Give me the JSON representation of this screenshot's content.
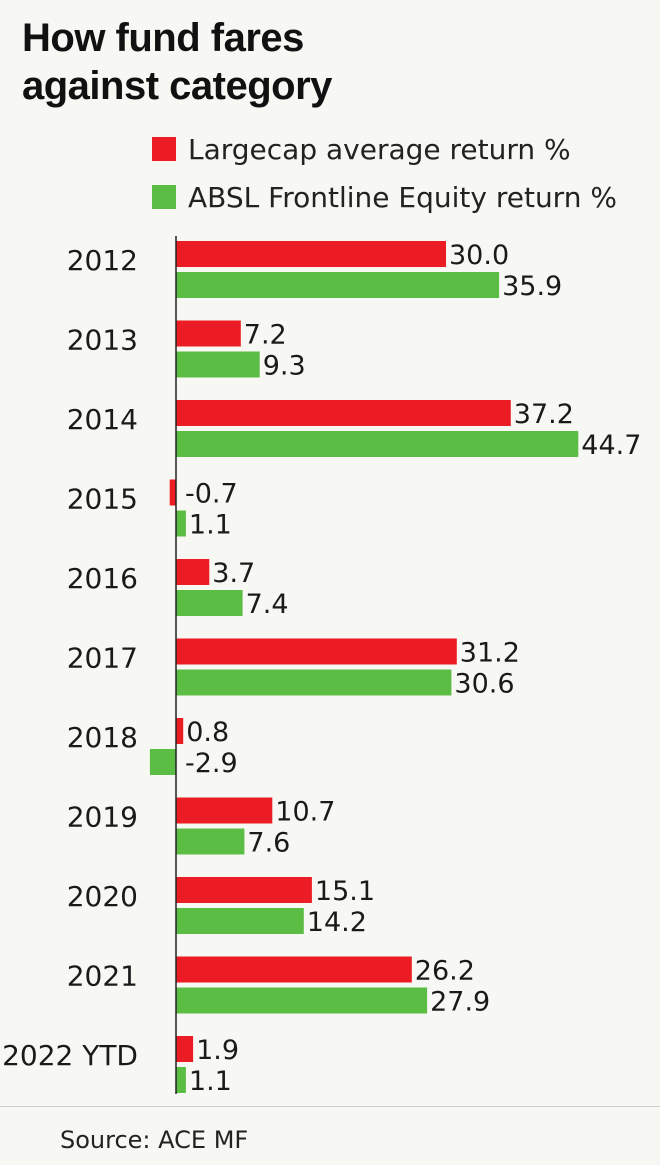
{
  "colors": {
    "largecap": "#ec1c24",
    "fund": "#5cbd44",
    "axis": "#222222"
  },
  "chart_data": {
    "type": "bar",
    "orientation": "horizontal",
    "title_lines": [
      "How fund fares",
      "against category"
    ],
    "categories": [
      "2012",
      "2013",
      "2014",
      "2015",
      "2016",
      "2017",
      "2018",
      "2019",
      "2020",
      "2021",
      "2022 YTD"
    ],
    "series": [
      {
        "name": "Largecap average return %",
        "values": [
          30.0,
          7.2,
          37.2,
          -0.7,
          3.7,
          31.2,
          0.8,
          10.7,
          15.1,
          26.2,
          1.9
        ],
        "labels": [
          "30.0",
          "7.2",
          "37.2",
          "-0.7",
          "3.7",
          "31.2",
          "0.8",
          "10.7",
          "15.1",
          "26.2",
          "1.9"
        ]
      },
      {
        "name": "ABSL Frontline Equity return %",
        "values": [
          35.9,
          9.3,
          44.7,
          1.1,
          7.4,
          30.6,
          -2.9,
          7.6,
          14.2,
          27.9,
          1.1
        ],
        "labels": [
          "35.9",
          "9.3",
          "44.7",
          "1.1",
          "7.4",
          "30.6",
          "-2.9",
          "7.6",
          "14.2",
          "27.9",
          "1.1"
        ]
      }
    ],
    "legend_position": "top",
    "grid": false
  },
  "source": "Source: ACE MF"
}
